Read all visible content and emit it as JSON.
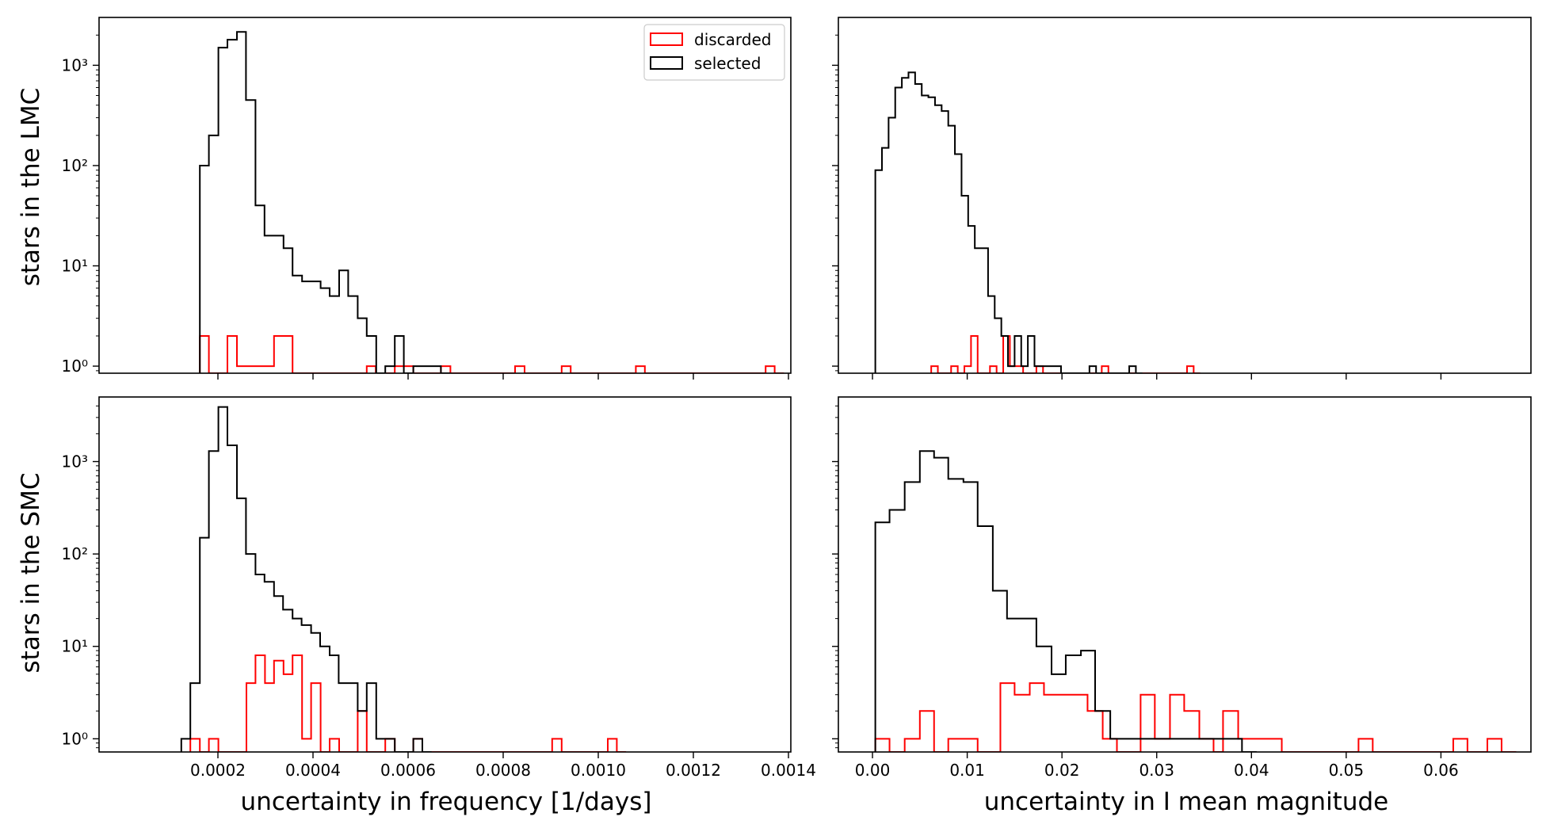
{
  "figure": {
    "row_labels": [
      "stars in the LMC",
      "stars in the SMC"
    ],
    "col_labels": [
      "uncertainty in frequency [1/days]",
      "uncertainty in I mean magnitude"
    ],
    "legend": {
      "entries": [
        {
          "name": "discarded",
          "color": "#ff0000"
        },
        {
          "name": "selected",
          "color": "#000000"
        }
      ],
      "placement": "top-right of top-left panel"
    }
  },
  "colors": {
    "discarded": "#ff0000",
    "selected": "#000000"
  },
  "chart_data": [
    {
      "type": "histogram-step",
      "panel": "LMC frequency uncertainty",
      "xlabel": "",
      "ylabel": "stars in the LMC",
      "yscale": "log",
      "xlim": [
        -5e-05,
        0.001405
      ],
      "ylim": [
        0.85,
        3000
      ],
      "xticks": [
        0.0002,
        0.0004,
        0.0006,
        0.0008,
        0.001,
        0.0012,
        0.0014
      ],
      "xtick_labels_shown": false,
      "yticks": [
        1,
        10,
        100,
        1000
      ],
      "ytick_labels": [
        "10⁰",
        "10¹",
        "10²",
        "10³"
      ],
      "series": [
        {
          "name": "discarded",
          "color": "#ff0000",
          "bin_width": 1.95e-05,
          "bins": [
            [
              0.000162,
              2
            ],
            [
              0.000181,
              0
            ],
            [
              0.00022,
              2
            ],
            [
              0.00024,
              1
            ],
            [
              0.000318,
              2
            ],
            [
              0.000357,
              0
            ],
            [
              0.000513,
              1
            ],
            [
              0.000532,
              0
            ],
            [
              0.000572,
              1
            ],
            [
              0.000611,
              0
            ],
            [
              0.000669,
              1
            ],
            [
              0.000689,
              0
            ],
            [
              0.000825,
              1
            ],
            [
              0.000845,
              0
            ],
            [
              0.000923,
              1
            ],
            [
              0.000942,
              0
            ],
            [
              0.001079,
              1
            ],
            [
              0.001098,
              0
            ],
            [
              0.001352,
              1
            ],
            [
              0.001371,
              0
            ]
          ]
        },
        {
          "name": "selected",
          "color": "#000000",
          "bin_width": 1.95e-05,
          "bins": [
            [
              0.000162,
              100
            ],
            [
              0.000181,
              200
            ],
            [
              0.000201,
              1500
            ],
            [
              0.00022,
              1800
            ],
            [
              0.00024,
              2150
            ],
            [
              0.000259,
              450
            ],
            [
              0.000279,
              40
            ],
            [
              0.000298,
              20
            ],
            [
              0.000318,
              20
            ],
            [
              0.000338,
              15
            ],
            [
              0.000357,
              8
            ],
            [
              0.000377,
              7
            ],
            [
              0.000396,
              7
            ],
            [
              0.000416,
              6
            ],
            [
              0.000435,
              5
            ],
            [
              0.000455,
              9
            ],
            [
              0.000474,
              5
            ],
            [
              0.000494,
              3
            ],
            [
              0.000513,
              2
            ],
            [
              0.000533,
              0
            ],
            [
              0.000552,
              1
            ],
            [
              0.000572,
              2
            ],
            [
              0.000591,
              0
            ],
            [
              0.000611,
              1
            ],
            [
              0.00063,
              1
            ],
            [
              0.00065,
              1
            ],
            [
              0.000669,
              0
            ]
          ]
        }
      ]
    },
    {
      "type": "histogram-step",
      "panel": "LMC magnitude uncertainty",
      "xlabel": "",
      "ylabel": "",
      "yscale": "log",
      "xlim": [
        -0.0036,
        0.0695
      ],
      "ylim": [
        0.85,
        3000
      ],
      "xticks": [
        0.0,
        0.01,
        0.02,
        0.03,
        0.04,
        0.05,
        0.06
      ],
      "xtick_labels_shown": false,
      "yticks": [
        1,
        10,
        100,
        1000
      ],
      "ytick_labels_shown": false,
      "series": [
        {
          "name": "discarded",
          "color": "#ff0000",
          "bin_width": 0.00069,
          "bins": [
            [
              0.0062,
              1
            ],
            [
              0.0069,
              0
            ],
            [
              0.0083,
              1
            ],
            [
              0.009,
              0
            ],
            [
              0.0097,
              1
            ],
            [
              0.0104,
              2
            ],
            [
              0.0111,
              0
            ],
            [
              0.0124,
              1
            ],
            [
              0.0131,
              0
            ],
            [
              0.0138,
              2
            ],
            [
              0.0145,
              1
            ],
            [
              0.0152,
              1
            ],
            [
              0.0159,
              0
            ],
            [
              0.0173,
              1
            ],
            [
              0.018,
              0
            ],
            [
              0.0242,
              1
            ],
            [
              0.0249,
              0
            ],
            [
              0.0332,
              1
            ],
            [
              0.0339,
              0
            ]
          ]
        },
        {
          "name": "selected",
          "color": "#000000",
          "bin_width": 0.00069,
          "bins": [
            [
              0.0003,
              90
            ],
            [
              0.001,
              150
            ],
            [
              0.0017,
              300
            ],
            [
              0.0024,
              600
            ],
            [
              0.0031,
              750
            ],
            [
              0.0038,
              850
            ],
            [
              0.0045,
              650
            ],
            [
              0.0052,
              500
            ],
            [
              0.0059,
              480
            ],
            [
              0.0066,
              400
            ],
            [
              0.0073,
              350
            ],
            [
              0.008,
              250
            ],
            [
              0.0087,
              130
            ],
            [
              0.0094,
              50
            ],
            [
              0.0101,
              25
            ],
            [
              0.0108,
              15
            ],
            [
              0.0115,
              15
            ],
            [
              0.0122,
              5
            ],
            [
              0.0129,
              3
            ],
            [
              0.0136,
              2
            ],
            [
              0.0143,
              1
            ],
            [
              0.015,
              2
            ],
            [
              0.0157,
              1
            ],
            [
              0.0164,
              2
            ],
            [
              0.0171,
              1
            ],
            [
              0.0178,
              1
            ],
            [
              0.0185,
              1
            ],
            [
              0.0192,
              1
            ],
            [
              0.0199,
              0
            ],
            [
              0.0229,
              1
            ],
            [
              0.0236,
              0
            ],
            [
              0.0271,
              1
            ],
            [
              0.0278,
              0
            ]
          ]
        }
      ]
    },
    {
      "type": "histogram-step",
      "panel": "SMC frequency uncertainty",
      "xlabel": "uncertainty in frequency [1/days]",
      "ylabel": "stars in the SMC",
      "yscale": "log",
      "xlim": [
        -5e-05,
        0.001405
      ],
      "ylim": [
        0.72,
        5000
      ],
      "xticks": [
        0.0002,
        0.0004,
        0.0006,
        0.0008,
        0.001,
        0.0012,
        0.0014
      ],
      "xtick_labels": [
        "0.0002",
        "0.0004",
        "0.0006",
        "0.0008",
        "0.0010",
        "0.0012",
        "0.0014"
      ],
      "yticks": [
        1,
        10,
        100,
        1000
      ],
      "ytick_labels": [
        "10⁰",
        "10¹",
        "10²",
        "10³"
      ],
      "series": [
        {
          "name": "discarded",
          "color": "#ff0000",
          "bin_width": 1.95e-05,
          "bins": [
            [
              0.000142,
              1
            ],
            [
              0.000162,
              0
            ],
            [
              0.000181,
              1
            ],
            [
              0.000201,
              0
            ],
            [
              0.00026,
              4
            ],
            [
              0.000279,
              8
            ],
            [
              0.000299,
              4
            ],
            [
              0.000318,
              7
            ],
            [
              0.000338,
              5
            ],
            [
              0.000357,
              8
            ],
            [
              0.000377,
              1
            ],
            [
              0.000396,
              4
            ],
            [
              0.000416,
              0
            ],
            [
              0.000435,
              1
            ],
            [
              0.000455,
              0
            ],
            [
              0.000494,
              2
            ],
            [
              0.000513,
              0
            ],
            [
              0.000552,
              1
            ],
            [
              0.000572,
              0
            ],
            [
              0.000611,
              1
            ],
            [
              0.00063,
              0
            ],
            [
              0.000903,
              1
            ],
            [
              0.000923,
              0
            ],
            [
              0.00102,
              1
            ],
            [
              0.001039,
              0
            ]
          ]
        },
        {
          "name": "selected",
          "color": "#000000",
          "bin_width": 1.95e-05,
          "bins": [
            [
              0.000123,
              1
            ],
            [
              0.000142,
              4
            ],
            [
              0.000162,
              150
            ],
            [
              0.000181,
              1300
            ],
            [
              0.000201,
              3900
            ],
            [
              0.00022,
              1500
            ],
            [
              0.00024,
              400
            ],
            [
              0.000259,
              100
            ],
            [
              0.000279,
              60
            ],
            [
              0.000298,
              50
            ],
            [
              0.000318,
              35
            ],
            [
              0.000337,
              25
            ],
            [
              0.000357,
              20
            ],
            [
              0.000376,
              17
            ],
            [
              0.000396,
              14
            ],
            [
              0.000415,
              10
            ],
            [
              0.000435,
              8
            ],
            [
              0.000454,
              4
            ],
            [
              0.000474,
              4
            ],
            [
              0.000494,
              2
            ],
            [
              0.000513,
              4
            ],
            [
              0.000533,
              1
            ],
            [
              0.000552,
              1
            ],
            [
              0.000572,
              0
            ],
            [
              0.000611,
              1
            ],
            [
              0.00063,
              0
            ]
          ]
        }
      ]
    },
    {
      "type": "histogram-step",
      "panel": "SMC magnitude uncertainty",
      "xlabel": "uncertainty in I mean magnitude",
      "ylabel": "",
      "yscale": "log",
      "xlim": [
        -0.0036,
        0.0695
      ],
      "ylim": [
        0.72,
        5000
      ],
      "xticks": [
        0.0,
        0.01,
        0.02,
        0.03,
        0.04,
        0.05,
        0.06
      ],
      "xtick_labels": [
        "0.00",
        "0.01",
        "0.02",
        "0.03",
        "0.04",
        "0.05",
        "0.06"
      ],
      "yticks": [
        1,
        10,
        100,
        1000
      ],
      "ytick_labels_shown": false,
      "series": [
        {
          "name": "discarded",
          "color": "#ff0000",
          "bin_width": 0.00155,
          "bins": [
            [
              0.0003,
              1
            ],
            [
              0.0018,
              0
            ],
            [
              0.0034,
              1
            ],
            [
              0.005,
              2
            ],
            [
              0.0065,
              0
            ],
            [
              0.008,
              1
            ],
            [
              0.0096,
              1
            ],
            [
              0.0111,
              0
            ],
            [
              0.0135,
              4
            ],
            [
              0.015,
              3
            ],
            [
              0.0166,
              4
            ],
            [
              0.0181,
              3
            ],
            [
              0.0196,
              3
            ],
            [
              0.0212,
              3
            ],
            [
              0.0227,
              2
            ],
            [
              0.0243,
              1
            ],
            [
              0.0258,
              0
            ],
            [
              0.0283,
              3
            ],
            [
              0.0298,
              1
            ],
            [
              0.0314,
              3
            ],
            [
              0.0329,
              2
            ],
            [
              0.0345,
              1
            ],
            [
              0.036,
              0
            ],
            [
              0.037,
              2
            ],
            [
              0.0386,
              1
            ],
            [
              0.0401,
              1
            ],
            [
              0.0417,
              1
            ],
            [
              0.0432,
              0
            ],
            [
              0.0513,
              1
            ],
            [
              0.0528,
              0
            ],
            [
              0.0613,
              1
            ],
            [
              0.0628,
              0
            ],
            [
              0.0649,
              1
            ],
            [
              0.0664,
              0
            ]
          ]
        },
        {
          "name": "selected",
          "color": "#000000",
          "bin_width": 0.00155,
          "bins": [
            [
              0.0003,
              220
            ],
            [
              0.0018,
              300
            ],
            [
              0.0034,
              600
            ],
            [
              0.005,
              1300
            ],
            [
              0.0065,
              1100
            ],
            [
              0.008,
              650
            ],
            [
              0.0096,
              600
            ],
            [
              0.0111,
              200
            ],
            [
              0.0127,
              40
            ],
            [
              0.0142,
              20
            ],
            [
              0.0158,
              20
            ],
            [
              0.0173,
              10
            ],
            [
              0.0189,
              5
            ],
            [
              0.0204,
              8
            ],
            [
              0.022,
              9
            ],
            [
              0.0235,
              2
            ],
            [
              0.0251,
              1
            ],
            [
              0.0266,
              1
            ],
            [
              0.0282,
              1
            ],
            [
              0.0297,
              1
            ],
            [
              0.0313,
              1
            ],
            [
              0.0328,
              1
            ],
            [
              0.0344,
              1
            ],
            [
              0.0359,
              1
            ],
            [
              0.0375,
              1
            ],
            [
              0.039,
              0
            ]
          ]
        }
      ]
    }
  ]
}
